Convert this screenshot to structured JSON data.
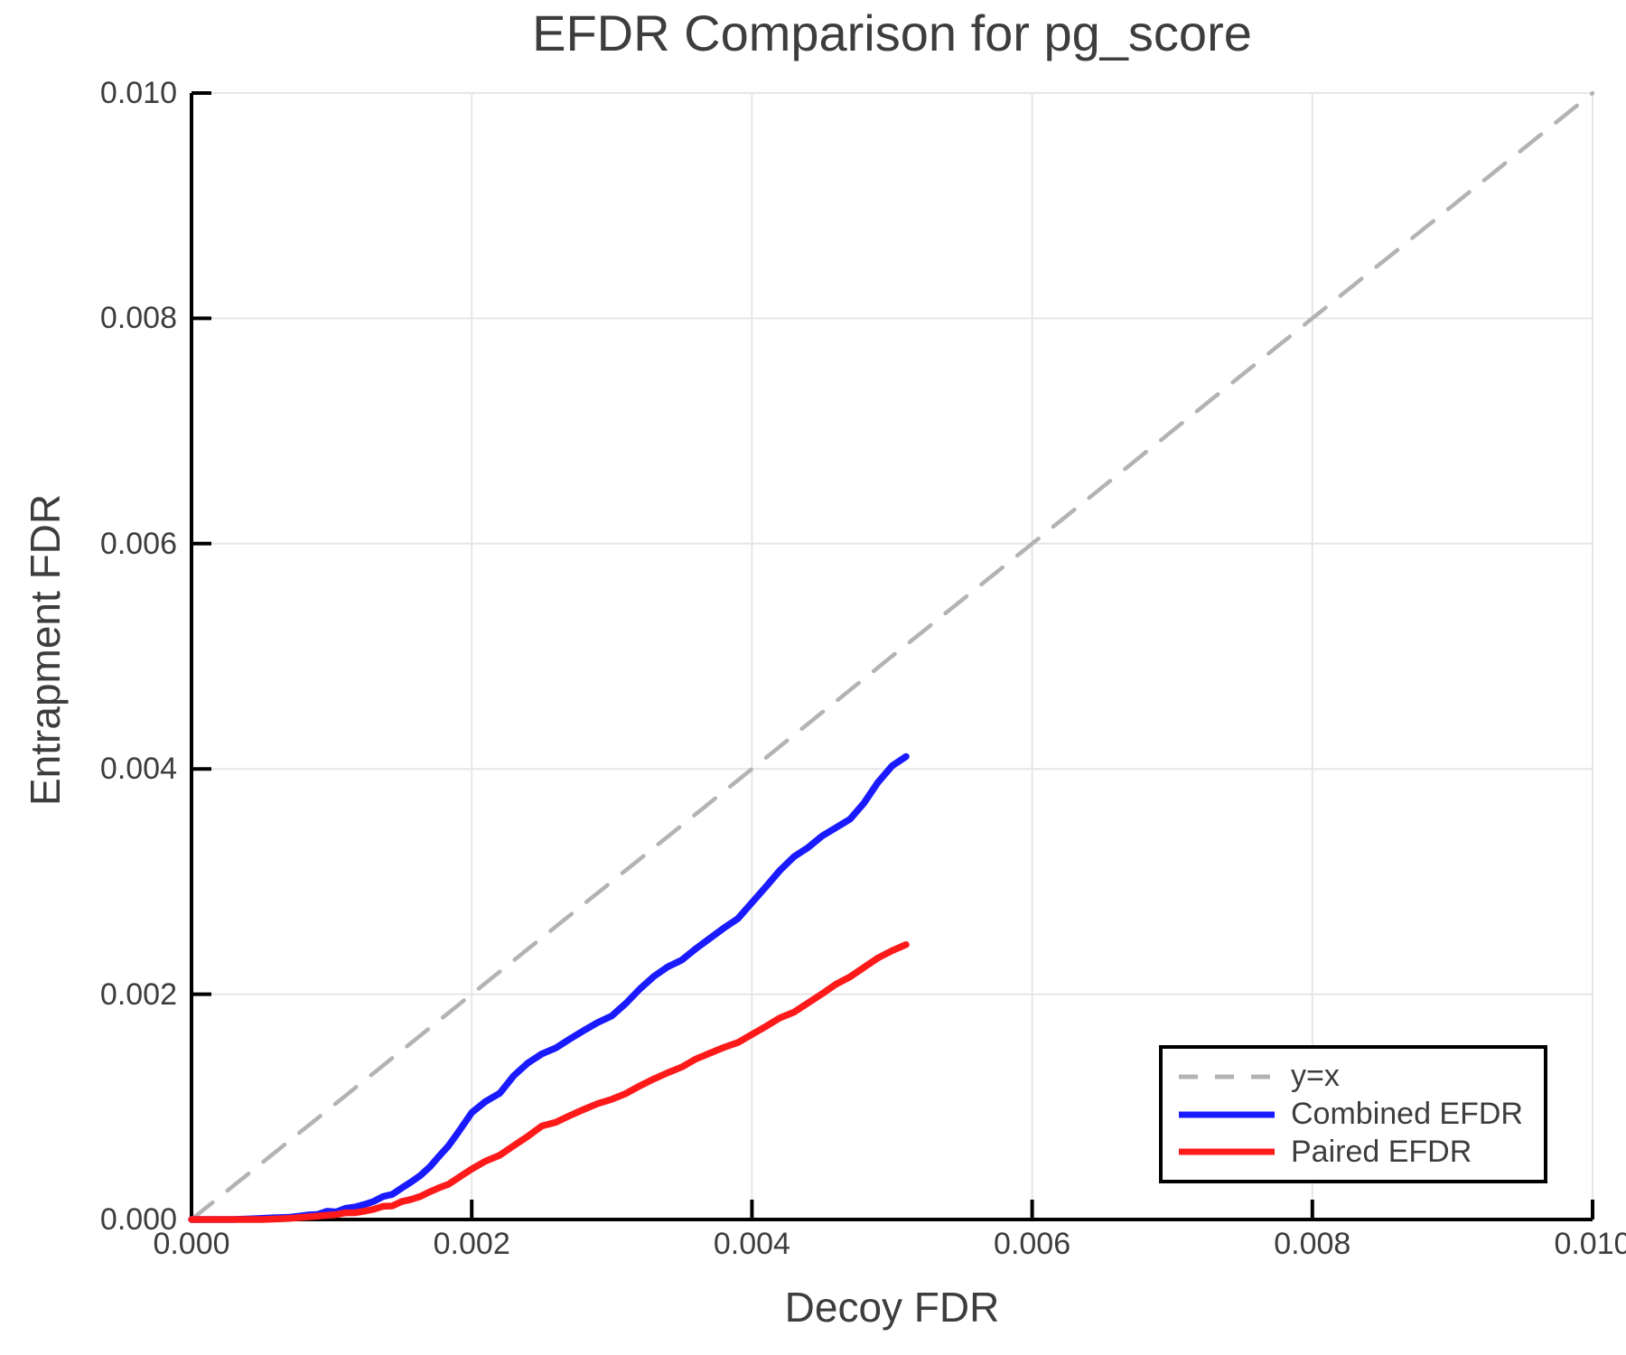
{
  "figure": {
    "title": "EFDR Comparison for pg_score",
    "xlabel": "Decoy FDR",
    "ylabel": "Entrapment FDR"
  },
  "colors": {
    "background": "#ffffff",
    "text": "#3d3d3d",
    "axis": "#000000",
    "grid": "#e6e6e6",
    "identity_line": "#b3b3b3",
    "combined_efdr": "#1a1aff",
    "paired_efdr": "#ff1a1a",
    "legend_border": "#000000"
  },
  "chart_data": {
    "type": "line",
    "title": "EFDR Comparison for pg_score",
    "xlabel": "Decoy FDR",
    "ylabel": "Entrapment FDR",
    "xlim": [
      0.0,
      0.01
    ],
    "ylim": [
      0.0,
      0.01
    ],
    "grid": true,
    "xticks": {
      "values": [
        0.0,
        0.002,
        0.004,
        0.006,
        0.008,
        0.01
      ],
      "labels": [
        "0.000",
        "0.002",
        "0.004",
        "0.006",
        "0.008",
        "0.010"
      ]
    },
    "yticks": {
      "values": [
        0.0,
        0.002,
        0.004,
        0.006,
        0.008,
        0.01
      ],
      "labels": [
        "0.000",
        "0.002",
        "0.004",
        "0.006",
        "0.008",
        "0.010"
      ]
    },
    "legend": {
      "position": "bottom-right",
      "entries": [
        {
          "label": "y=x",
          "color": "#b3b3b3",
          "dashed": true
        },
        {
          "label": "Combined EFDR",
          "color": "#1a1aff",
          "dashed": false
        },
        {
          "label": "Paired EFDR",
          "color": "#ff1a1a",
          "dashed": false
        }
      ]
    },
    "series": [
      {
        "name": "y=x",
        "color": "#b3b3b3",
        "style": "dashed",
        "width": 4.5,
        "points": [
          [
            0.0,
            0.0
          ],
          [
            0.01,
            0.01
          ]
        ]
      },
      {
        "name": "Combined EFDR",
        "color": "#1a1aff",
        "style": "solid",
        "width": 7.5,
        "points": [
          [
            0.0,
            0.0
          ],
          [
            0.0003,
            0.0
          ],
          [
            0.0005,
            1e-05
          ],
          [
            0.0007,
            2e-05
          ],
          [
            0.0009,
            5e-05
          ],
          [
            0.0011,
            9e-05
          ],
          [
            0.0013,
            0.00016
          ],
          [
            0.0015,
            0.00027
          ],
          [
            0.0017,
            0.00046
          ],
          [
            0.0019,
            0.00076
          ],
          [
            0.002,
            0.00094
          ],
          [
            0.0021,
            0.00104
          ],
          [
            0.0022,
            0.00113
          ],
          [
            0.0023,
            0.00127
          ],
          [
            0.0024,
            0.00138
          ],
          [
            0.0025,
            0.00146
          ],
          [
            0.0026,
            0.00153
          ],
          [
            0.0027,
            0.0016
          ],
          [
            0.0028,
            0.00167
          ],
          [
            0.0029,
            0.00174
          ],
          [
            0.003,
            0.00181
          ],
          [
            0.0031,
            0.00192
          ],
          [
            0.0032,
            0.00204
          ],
          [
            0.0033,
            0.00215
          ],
          [
            0.0034,
            0.00224
          ],
          [
            0.0035,
            0.00231
          ],
          [
            0.0036,
            0.0024
          ],
          [
            0.0037,
            0.00249
          ],
          [
            0.0038,
            0.00258
          ],
          [
            0.0039,
            0.00268
          ],
          [
            0.004,
            0.00281
          ],
          [
            0.0041,
            0.00295
          ],
          [
            0.0042,
            0.00309
          ],
          [
            0.0043,
            0.00323
          ],
          [
            0.0044,
            0.0033
          ],
          [
            0.0045,
            0.0034
          ],
          [
            0.0046,
            0.00347
          ],
          [
            0.0047,
            0.00356
          ],
          [
            0.0048,
            0.0037
          ],
          [
            0.0049,
            0.00388
          ],
          [
            0.005,
            0.00402
          ],
          [
            0.0051,
            0.00411
          ]
        ]
      },
      {
        "name": "Paired EFDR",
        "color": "#ff1a1a",
        "style": "solid",
        "width": 7.5,
        "points": [
          [
            0.0,
            0.0
          ],
          [
            0.0005,
            0.0
          ],
          [
            0.0007,
            1e-05
          ],
          [
            0.0009,
            3e-05
          ],
          [
            0.0011,
            5e-05
          ],
          [
            0.0013,
            9e-05
          ],
          [
            0.0015,
            0.00015
          ],
          [
            0.0017,
            0.00024
          ],
          [
            0.0019,
            0.00036
          ],
          [
            0.002,
            0.00044
          ],
          [
            0.0021,
            0.00051
          ],
          [
            0.0022,
            0.00058
          ],
          [
            0.0023,
            0.00065
          ],
          [
            0.0024,
            0.00073
          ],
          [
            0.0025,
            0.00082
          ],
          [
            0.0026,
            0.00087
          ],
          [
            0.0027,
            0.00092
          ],
          [
            0.0028,
            0.00097
          ],
          [
            0.0029,
            0.00102
          ],
          [
            0.003,
            0.00107
          ],
          [
            0.0031,
            0.00112
          ],
          [
            0.0032,
            0.00118
          ],
          [
            0.0033,
            0.00124
          ],
          [
            0.0034,
            0.0013
          ],
          [
            0.0035,
            0.00136
          ],
          [
            0.0036,
            0.00142
          ],
          [
            0.0037,
            0.00147
          ],
          [
            0.0038,
            0.00152
          ],
          [
            0.0039,
            0.00158
          ],
          [
            0.004,
            0.00164
          ],
          [
            0.0041,
            0.00171
          ],
          [
            0.0042,
            0.00178
          ],
          [
            0.0043,
            0.00185
          ],
          [
            0.0044,
            0.00192
          ],
          [
            0.0045,
            0.002
          ],
          [
            0.0046,
            0.00208
          ],
          [
            0.0047,
            0.00216
          ],
          [
            0.0048,
            0.00224
          ],
          [
            0.0049,
            0.00232
          ],
          [
            0.005,
            0.00238
          ],
          [
            0.0051,
            0.00244
          ]
        ]
      }
    ]
  }
}
